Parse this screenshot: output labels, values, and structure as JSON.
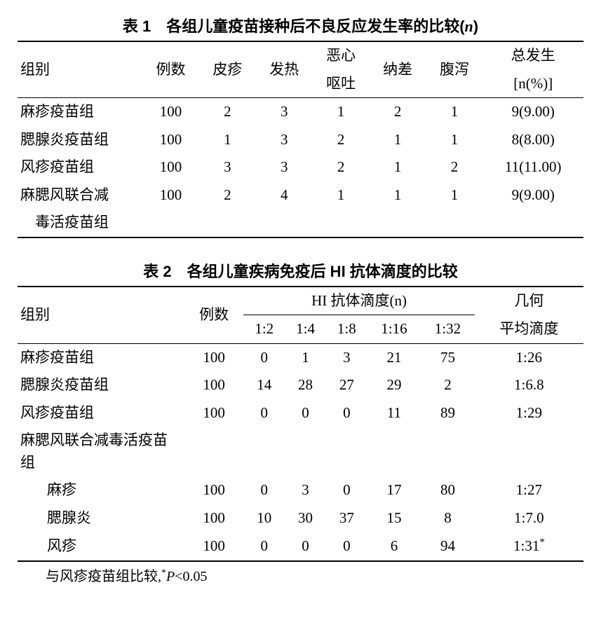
{
  "table1": {
    "title_prefix": "表 1　",
    "title_main": "各组儿童疫苗接种后不良反应发生率的比较(",
    "title_var": "n",
    "title_suffix": ")",
    "headers": {
      "group": "组别",
      "n": "例数",
      "rash": "皮疹",
      "fever": "发热",
      "nausea_l1": "恶心",
      "nausea_l2": "呕吐",
      "anorexia": "纳差",
      "diarrhea": "腹泻",
      "total_l1": "总发生",
      "total_l2_pre": "[",
      "total_l2_var": "n",
      "total_l2_post": "(%)]"
    },
    "rows": [
      {
        "group": "麻疹疫苗组",
        "n": "100",
        "rash": "2",
        "fever": "3",
        "nausea": "1",
        "anorexia": "2",
        "diarrhea": "1",
        "total": "9(9.00)"
      },
      {
        "group": "腮腺炎疫苗组",
        "n": "100",
        "rash": "1",
        "fever": "3",
        "nausea": "2",
        "anorexia": "1",
        "diarrhea": "1",
        "total": "8(8.00)"
      },
      {
        "group": "风疹疫苗组",
        "n": "100",
        "rash": "3",
        "fever": "3",
        "nausea": "2",
        "anorexia": "1",
        "diarrhea": "2",
        "total": "11(11.00)"
      },
      {
        "group": "麻腮风联合减",
        "n": "100",
        "rash": "2",
        "fever": "4",
        "nausea": "1",
        "anorexia": "1",
        "diarrhea": "1",
        "total": "9(9.00)"
      }
    ],
    "row4_line2": "　毒活疫苗组"
  },
  "table2": {
    "title_prefix": "表 2　",
    "title_main": "各组儿童疾病免疫后 HI 抗体滴度的比较",
    "headers": {
      "group": "组别",
      "n": "例数",
      "hi_titer": "HI 抗体滴度(",
      "hi_titer_var": "n",
      "hi_titer_suffix": ")",
      "t1_2": "1:2",
      "t1_4": "1:4",
      "t1_8": "1:8",
      "t1_16": "1:16",
      "t1_32": "1:32",
      "gmt_l1": "几何",
      "gmt_l2": "平均滴度"
    },
    "rows": [
      {
        "group": "麻疹疫苗组",
        "indent": false,
        "n": "100",
        "t2": "0",
        "t4": "1",
        "t8": "3",
        "t16": "21",
        "t32": "75",
        "gmt": "1:26",
        "sup": ""
      },
      {
        "group": "腮腺炎疫苗组",
        "indent": false,
        "n": "100",
        "t2": "14",
        "t4": "28",
        "t8": "27",
        "t16": "29",
        "t32": "2",
        "gmt": "1:6.8",
        "sup": ""
      },
      {
        "group": "风疹疫苗组",
        "indent": false,
        "n": "100",
        "t2": "0",
        "t4": "0",
        "t8": "0",
        "t16": "11",
        "t32": "89",
        "gmt": "1:29",
        "sup": ""
      },
      {
        "group": "麻腮风联合减毒活疫苗组",
        "indent": false,
        "n": "",
        "t2": "",
        "t4": "",
        "t8": "",
        "t16": "",
        "t32": "",
        "gmt": "",
        "sup": ""
      },
      {
        "group": "麻疹",
        "indent": true,
        "n": "100",
        "t2": "0",
        "t4": "3",
        "t8": "0",
        "t16": "17",
        "t32": "80",
        "gmt": "1:27",
        "sup": ""
      },
      {
        "group": "腮腺炎",
        "indent": true,
        "n": "100",
        "t2": "10",
        "t4": "30",
        "t8": "37",
        "t16": "15",
        "t32": "8",
        "gmt": "1:7.0",
        "sup": ""
      },
      {
        "group": "风疹",
        "indent": true,
        "n": "100",
        "t2": "0",
        "t4": "0",
        "t8": "0",
        "t16": "6",
        "t32": "94",
        "gmt": "1:31",
        "sup": "*"
      }
    ],
    "footnote_pre": "与风疹疫苗组比较,",
    "footnote_sup": "*",
    "footnote_var": "P",
    "footnote_post": "<0.05"
  }
}
